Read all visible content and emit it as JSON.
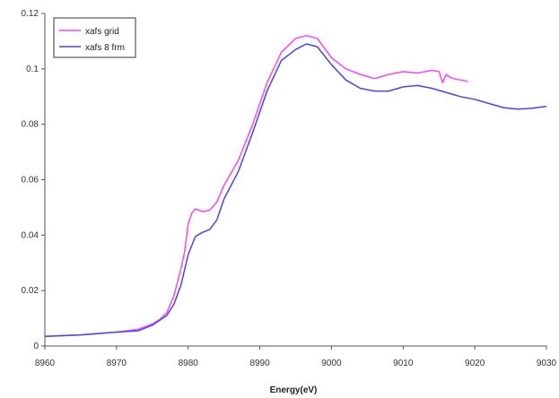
{
  "chart_data": {
    "type": "line",
    "title": "",
    "xlabel": "Energy(eV)",
    "ylabel": "",
    "xlim": [
      8960,
      9030
    ],
    "ylim": [
      0,
      0.12
    ],
    "x_ticks": [
      8960,
      8970,
      8980,
      8990,
      9000,
      9010,
      9020,
      9030
    ],
    "x_tick_labels": [
      "8960",
      "8970",
      "8980",
      "8990",
      "9000",
      "9010",
      "9020",
      "9030"
    ],
    "y_ticks": [
      0,
      0.02,
      0.04,
      0.06,
      0.08,
      0.1,
      0.12
    ],
    "y_tick_labels": [
      "0",
      "0.02",
      "0.04",
      "0.06",
      "0.08",
      "0.1",
      "0.12"
    ],
    "grid": false,
    "legend_position": "top-left",
    "series": [
      {
        "name": "xafs grid",
        "color": "#ff44ff",
        "x": [
          8960,
          8965,
          8970,
          8973,
          8975,
          8976,
          8977,
          8978,
          8979,
          8979.5,
          8980,
          8980.5,
          8981,
          8981.5,
          8982,
          8983,
          8984,
          8985,
          8987,
          8989,
          8991,
          8993,
          8995,
          8996.5,
          8998,
          9000,
          9002,
          9004,
          9006,
          9008,
          9010,
          9012,
          9014,
          9015,
          9015.5,
          9016,
          9016.5,
          9017,
          9019
        ],
        "values": [
          0.0035,
          0.004,
          0.005,
          0.006,
          0.008,
          0.0095,
          0.012,
          0.018,
          0.028,
          0.034,
          0.044,
          0.048,
          0.0495,
          0.049,
          0.0485,
          0.049,
          0.052,
          0.058,
          0.067,
          0.08,
          0.095,
          0.106,
          0.111,
          0.112,
          0.111,
          0.104,
          0.1,
          0.098,
          0.0965,
          0.098,
          0.099,
          0.0985,
          0.0995,
          0.099,
          0.095,
          0.098,
          0.097,
          0.0965,
          0.0955
        ]
      },
      {
        "name": "xafs 8 frm",
        "color": "#4444ff",
        "x": [
          8960,
          8965,
          8970,
          8973,
          8975,
          8977,
          8978,
          8979,
          8980,
          8981,
          8982,
          8983,
          8984,
          8985,
          8987,
          8989,
          8991,
          8993,
          8995,
          8996.5,
          8998,
          9000,
          9002,
          9004,
          9006,
          9008,
          9010,
          9012,
          9014,
          9016,
          9018,
          9020,
          9022,
          9024,
          9026,
          9028,
          9030
        ],
        "values": [
          0.0035,
          0.004,
          0.005,
          0.0055,
          0.0075,
          0.011,
          0.015,
          0.022,
          0.033,
          0.0395,
          0.041,
          0.042,
          0.0455,
          0.053,
          0.063,
          0.077,
          0.092,
          0.103,
          0.107,
          0.109,
          0.108,
          0.1015,
          0.096,
          0.093,
          0.092,
          0.092,
          0.0935,
          0.094,
          0.093,
          0.0915,
          0.09,
          0.089,
          0.0875,
          0.086,
          0.0855,
          0.0858,
          0.0865
        ]
      }
    ]
  }
}
